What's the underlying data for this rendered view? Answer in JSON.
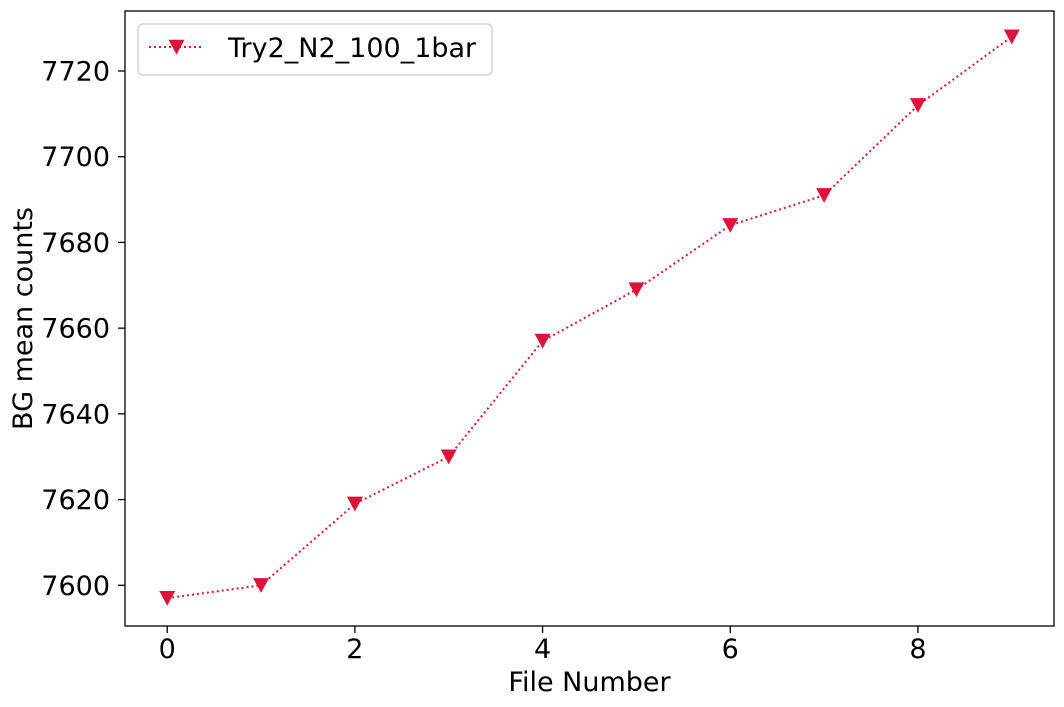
{
  "chart_data": {
    "type": "line",
    "title": "",
    "xlabel": "File Number",
    "ylabel": "BG mean counts",
    "xlim": [
      -0.45,
      9.45
    ],
    "ylim": [
      7590.5,
      7734.0
    ],
    "xticks": [
      0,
      2,
      4,
      6,
      8
    ],
    "yticks": [
      7600,
      7620,
      7640,
      7660,
      7680,
      7700,
      7720
    ],
    "grid": false,
    "legend_position": "upper-left",
    "series": [
      {
        "name": "Try2_N2_100_1bar",
        "color": "#dc143c",
        "line_style": "dotted",
        "marker": "triangle-down",
        "x": [
          0,
          1,
          2,
          3,
          4,
          5,
          6,
          7,
          8,
          9
        ],
        "y": [
          7597,
          7600,
          7619,
          7630,
          7657,
          7669,
          7684,
          7691,
          7712,
          7728
        ]
      }
    ]
  }
}
